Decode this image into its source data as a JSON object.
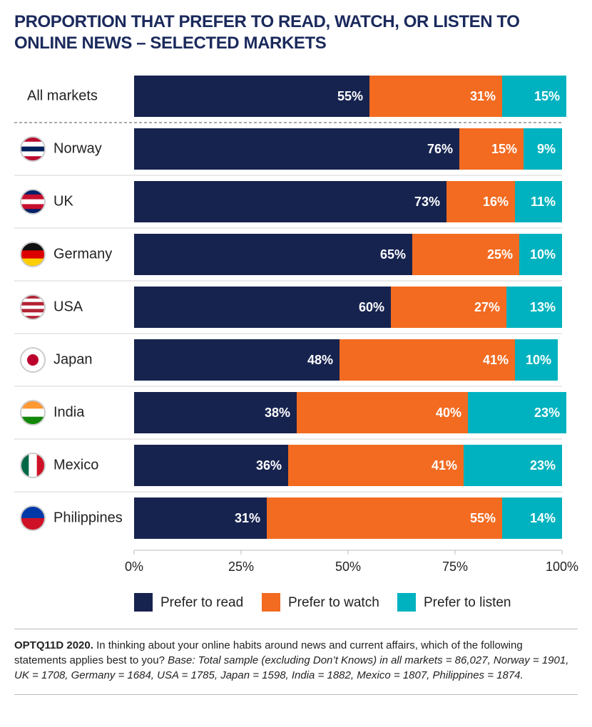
{
  "chart_data": {
    "type": "stacked_barh",
    "title": "PROPORTION THAT PREFER TO READ, WATCH, OR LISTEN TO ONLINE NEWS – SELECTED MARKETS",
    "categories": [
      "All markets",
      "Norway",
      "UK",
      "Germany",
      "USA",
      "Japan",
      "India",
      "Mexico",
      "Philippines"
    ],
    "series": [
      {
        "name": "Prefer to read",
        "color": "#17234f",
        "values": [
          55,
          76,
          73,
          65,
          60,
          48,
          38,
          36,
          31
        ],
        "value_labels": [
          "55%",
          "76%",
          "73%",
          "65%",
          "60%",
          "48%",
          "38%",
          "36%",
          "31%"
        ]
      },
      {
        "name": "Prefer to watch",
        "color": "#f26b21",
        "values": [
          31,
          15,
          16,
          25,
          27,
          41,
          40,
          41,
          55
        ],
        "value_labels": [
          "31%",
          "15%",
          "16%",
          "25%",
          "27%",
          "41%",
          "40%",
          "41%",
          "55%"
        ]
      },
      {
        "name": "Prefer to listen",
        "color": "#00b2bf",
        "values": [
          15,
          9,
          11,
          10,
          13,
          10,
          23,
          23,
          14
        ],
        "value_labels": [
          "15%",
          "9%",
          "11%",
          "10%",
          "13%",
          "10%",
          "23%",
          "23%",
          "14%"
        ]
      }
    ],
    "xlim": [
      0,
      100
    ],
    "xticks": [
      {
        "value": 0,
        "label": "0%"
      },
      {
        "value": 25,
        "label": "25%"
      },
      {
        "value": 50,
        "label": "50%"
      },
      {
        "value": 75,
        "label": "75%"
      },
      {
        "value": 100,
        "label": "100%"
      }
    ],
    "legend": "bottom"
  },
  "footnote": {
    "label": "OPTQ11D 2020.",
    "question": "In thinking about your online habits around news and current affairs, which of the following statements applies best to you?",
    "base": "Base: Total sample (excluding Don’t Knows) in all markets = 86,027, Norway = 1901, UK = 1708, Germany = 1684, USA = 1785, Japan = 1598, India = 1882, Mexico = 1807, Philippines = 1874."
  }
}
